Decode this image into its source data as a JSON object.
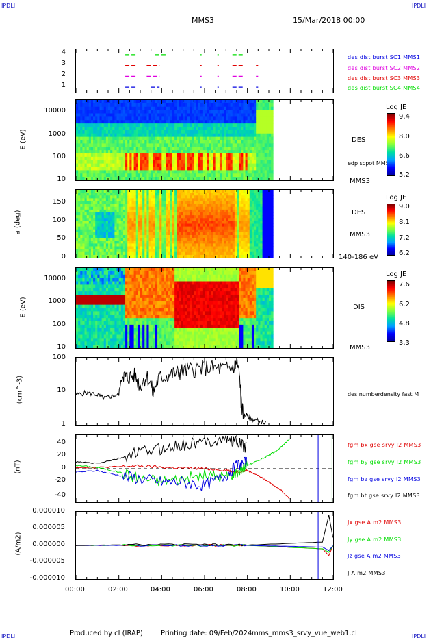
{
  "header": {
    "corner_tl": "IPDLI",
    "corner_tr": "IPDLI",
    "corner_bl": "IPDLI",
    "corner_br": "IPDLI",
    "mission": "MMS3",
    "datetime": "15/Mar/2018 00:00"
  },
  "footer": {
    "produced_by": "Produced by cl (IRAP)",
    "printing_date": "Printing date: 09/Feb/2024",
    "file_name": "mms_mms3_srvy_vue_web1.cl"
  },
  "colors": {
    "red": "#e00000",
    "green": "#00dd00",
    "blue": "#0000e0",
    "magenta": "#e000e0",
    "black": "#000000"
  },
  "panel1": {
    "yticks": [
      "1",
      "2",
      "3",
      "4"
    ],
    "legend": [
      {
        "text": "des dist burst SC1 MMS1",
        "color": "#0000e0"
      },
      {
        "text": "des dist burst SC2 MMS2",
        "color": "#e000e0"
      },
      {
        "text": "des dist burst SC3 MMS3",
        "color": "#e00000"
      },
      {
        "text": "des dist burst SC4 MMS4",
        "color": "#00dd00"
      }
    ]
  },
  "panel2": {
    "ylabel": "E (eV)",
    "yticks": [
      "10",
      "100",
      "1000",
      "10000"
    ],
    "species": "DES",
    "overlay": "edp scpot MMS3",
    "sc": "MMS3",
    "cb_title": "Log JE",
    "cb_ticks": [
      "9.4",
      "8.0",
      "6.6",
      "5.2"
    ]
  },
  "panel3": {
    "ylabel": "a (deg)",
    "yticks": [
      "0",
      "50",
      "100",
      "150"
    ],
    "species": "DES",
    "sc": "MMS3",
    "energy": "140-186 eV",
    "cb_title": "Log JE",
    "cb_ticks": [
      "9.0",
      "8.1",
      "7.2",
      "6.2"
    ]
  },
  "panel4": {
    "ylabel": "E (eV)",
    "yticks": [
      "10",
      "100",
      "1000",
      "10000"
    ],
    "species": "DIS",
    "sc": "MMS3",
    "cb_title": "Log JE",
    "cb_ticks": [
      "7.6",
      "6.2",
      "4.8",
      "3.3"
    ]
  },
  "panel5": {
    "ylabel": "(cm^-3)",
    "yticks": [
      "1",
      "10",
      "100"
    ],
    "legend": "des numberdensity fast M"
  },
  "panel6": {
    "ylabel": "(nT)",
    "yticks": [
      "-40",
      "-20",
      "0",
      "20",
      "40"
    ],
    "legend": [
      {
        "text": "fgm bx gse srvy l2 MMS3",
        "color": "#e00000"
      },
      {
        "text": "fgm by gse srvy l2 MMS3",
        "color": "#00dd00"
      },
      {
        "text": "fgm bz gse srvy l2 MMS3",
        "color": "#0000e0"
      },
      {
        "text": "fgm bt gse srvy l2 MMS3",
        "color": "#000000"
      }
    ]
  },
  "panel7": {
    "ylabel": "(A/m2)",
    "yticks": [
      "-0.000010",
      "-0.000005",
      "0.000000",
      "0.000005",
      "0.000010"
    ],
    "legend": [
      {
        "text": "Jx gse A m2 MMS3",
        "color": "#e00000"
      },
      {
        "text": "Jy gse A m2 MMS3",
        "color": "#00dd00"
      },
      {
        "text": "Jz gse A m2 MMS3",
        "color": "#0000e0"
      },
      {
        "text": "J A m2 MMS3",
        "color": "#000000"
      }
    ]
  },
  "xaxis": {
    "ticks": [
      "00:00",
      "02:00",
      "04:00",
      "06:00",
      "08:00",
      "10:00",
      "12:00"
    ]
  },
  "chart_data": [
    {
      "type": "scatter",
      "title": "",
      "x": [
        "00:00",
        "02:00",
        "04:00",
        "06:00",
        "08:00",
        "10:00",
        "12:00"
      ],
      "series": [
        {
          "name": "des dist burst SC1 MMS1",
          "value": 1,
          "intervals_h": [
            [
              2.3,
              2.9
            ],
            [
              3.5,
              3.9
            ],
            [
              7.3,
              7.8
            ],
            [
              8.4,
              8.5
            ]
          ]
        },
        {
          "name": "des dist burst SC2 MMS2",
          "value": 2,
          "intervals_h": [
            [
              2.3,
              2.9
            ],
            [
              3.3,
              3.9
            ],
            [
              7.3,
              7.8
            ],
            [
              8.4,
              8.5
            ]
          ]
        },
        {
          "name": "des dist burst SC3 MMS3",
          "value": 3,
          "intervals_h": [
            [
              2.3,
              2.9
            ],
            [
              3.3,
              3.9
            ],
            [
              7.3,
              7.8
            ],
            [
              8.4,
              8.5
            ]
          ]
        },
        {
          "name": "des dist burst SC4 MMS4",
          "value": 4,
          "intervals_h": [
            [
              2.3,
              2.9
            ],
            [
              3.7,
              4.2
            ],
            [
              7.3,
              7.8
            ]
          ]
        }
      ],
      "ylim": [
        0.5,
        4.5
      ]
    },
    {
      "type": "heatmap",
      "ylabel": "E (eV)",
      "yscale": "log",
      "ylim": [
        10,
        30000
      ],
      "xlim_h": [
        0,
        9.2
      ],
      "colorbar": {
        "title": "Log JE",
        "range": [
          5.2,
          9.4
        ]
      }
    },
    {
      "type": "heatmap",
      "ylabel": "a (deg)",
      "ylim": [
        0,
        180
      ],
      "xlim_h": [
        0,
        9.2
      ],
      "colorbar": {
        "title": "Log JE",
        "range": [
          6.2,
          9.0
        ]
      }
    },
    {
      "type": "heatmap",
      "ylabel": "E (eV)",
      "yscale": "log",
      "ylim": [
        10,
        20000
      ],
      "xlim_h": [
        0,
        9.2
      ],
      "colorbar": {
        "title": "Log JE",
        "range": [
          3.3,
          7.6
        ]
      }
    },
    {
      "type": "line",
      "ylabel": "(cm^-3)",
      "yscale": "log",
      "ylim": [
        1,
        100
      ],
      "series": [
        {
          "name": "des numberdensity fast M",
          "x_h": [
            0,
            0.5,
            1.0,
            1.3,
            1.6,
            2.0,
            2.2,
            2.4,
            2.7,
            3.0,
            3.3,
            3.6,
            3.9,
            4.3,
            4.7,
            5.0,
            5.5,
            6.0,
            6.5,
            7.0,
            7.4,
            7.5,
            7.7,
            7.8,
            7.9,
            8.2,
            8.5,
            8.9
          ],
          "values": [
            8,
            9,
            8,
            6,
            7,
            8,
            30,
            25,
            30,
            14,
            28,
            8,
            25,
            30,
            35,
            40,
            45,
            50,
            48,
            45,
            55,
            70,
            5,
            1.7,
            2,
            1.5,
            1.3,
            1.1
          ]
        }
      ]
    },
    {
      "type": "line",
      "ylabel": "(nT)",
      "ylim": [
        -50,
        50
      ],
      "series": [
        {
          "name": "fgm bx gse srvy l2 MMS3",
          "x_h": [
            0,
            1,
            2,
            3,
            4,
            5,
            6,
            7,
            7.5,
            8,
            8.5,
            9,
            9.5,
            10
          ],
          "values": [
            2,
            2,
            3,
            4,
            2,
            1,
            0,
            -2,
            -5,
            -3,
            -10,
            -20,
            -30,
            -45
          ]
        },
        {
          "name": "fgm by gse srvy l2 MMS3",
          "x_h": [
            0,
            1,
            2,
            3,
            4,
            5,
            6,
            7,
            7.5,
            8,
            8.5,
            9,
            9.5,
            10
          ],
          "values": [
            5,
            2,
            -5,
            -15,
            -18,
            -15,
            -10,
            -12,
            -5,
            5,
            12,
            20,
            30,
            45
          ]
        },
        {
          "name": "fgm bz gse srvy l2 MMS3",
          "x_h": [
            0,
            1,
            2,
            3,
            4,
            5,
            6,
            7,
            7.5,
            8
          ],
          "values": [
            -5,
            -3,
            -10,
            -15,
            -20,
            -20,
            -25,
            -10,
            5,
            10
          ]
        },
        {
          "name": "fgm bt gse srvy l2 MMS3",
          "x_h": [
            0,
            1,
            2,
            3,
            4,
            5,
            6,
            7,
            7.5,
            8
          ],
          "values": [
            10,
            8,
            15,
            25,
            30,
            35,
            40,
            45,
            40,
            30
          ]
        }
      ]
    },
    {
      "type": "line",
      "ylabel": "(A/m2)",
      "ylim": [
        -1e-05,
        1e-05
      ],
      "series": [
        {
          "name": "Jx gse A m2 MMS3",
          "x_h": [
            0,
            3,
            6,
            8,
            11.5,
            11.8,
            12
          ],
          "values": [
            0,
            0,
            0,
            0,
            -1e-06,
            -3e-06,
            0
          ]
        },
        {
          "name": "Jy gse A m2 MMS3",
          "x_h": [
            0,
            3,
            6,
            8,
            11.5,
            11.8,
            12
          ],
          "values": [
            0,
            0,
            0,
            0,
            -1e-06,
            -2e-06,
            0
          ]
        },
        {
          "name": "Jz gse A m2 MMS3",
          "x_h": [
            0,
            3,
            6,
            8,
            11.5,
            11.8,
            12
          ],
          "values": [
            0,
            0,
            0,
            0,
            -5e-07,
            -1.5e-06,
            0
          ]
        },
        {
          "name": "J A m2 MMS3",
          "x_h": [
            0,
            3,
            6,
            8,
            11.5,
            11.8,
            12
          ],
          "values": [
            0,
            2e-07,
            2e-07,
            1e-07,
            1e-06,
            9e-06,
            2e-06
          ]
        }
      ]
    }
  ]
}
